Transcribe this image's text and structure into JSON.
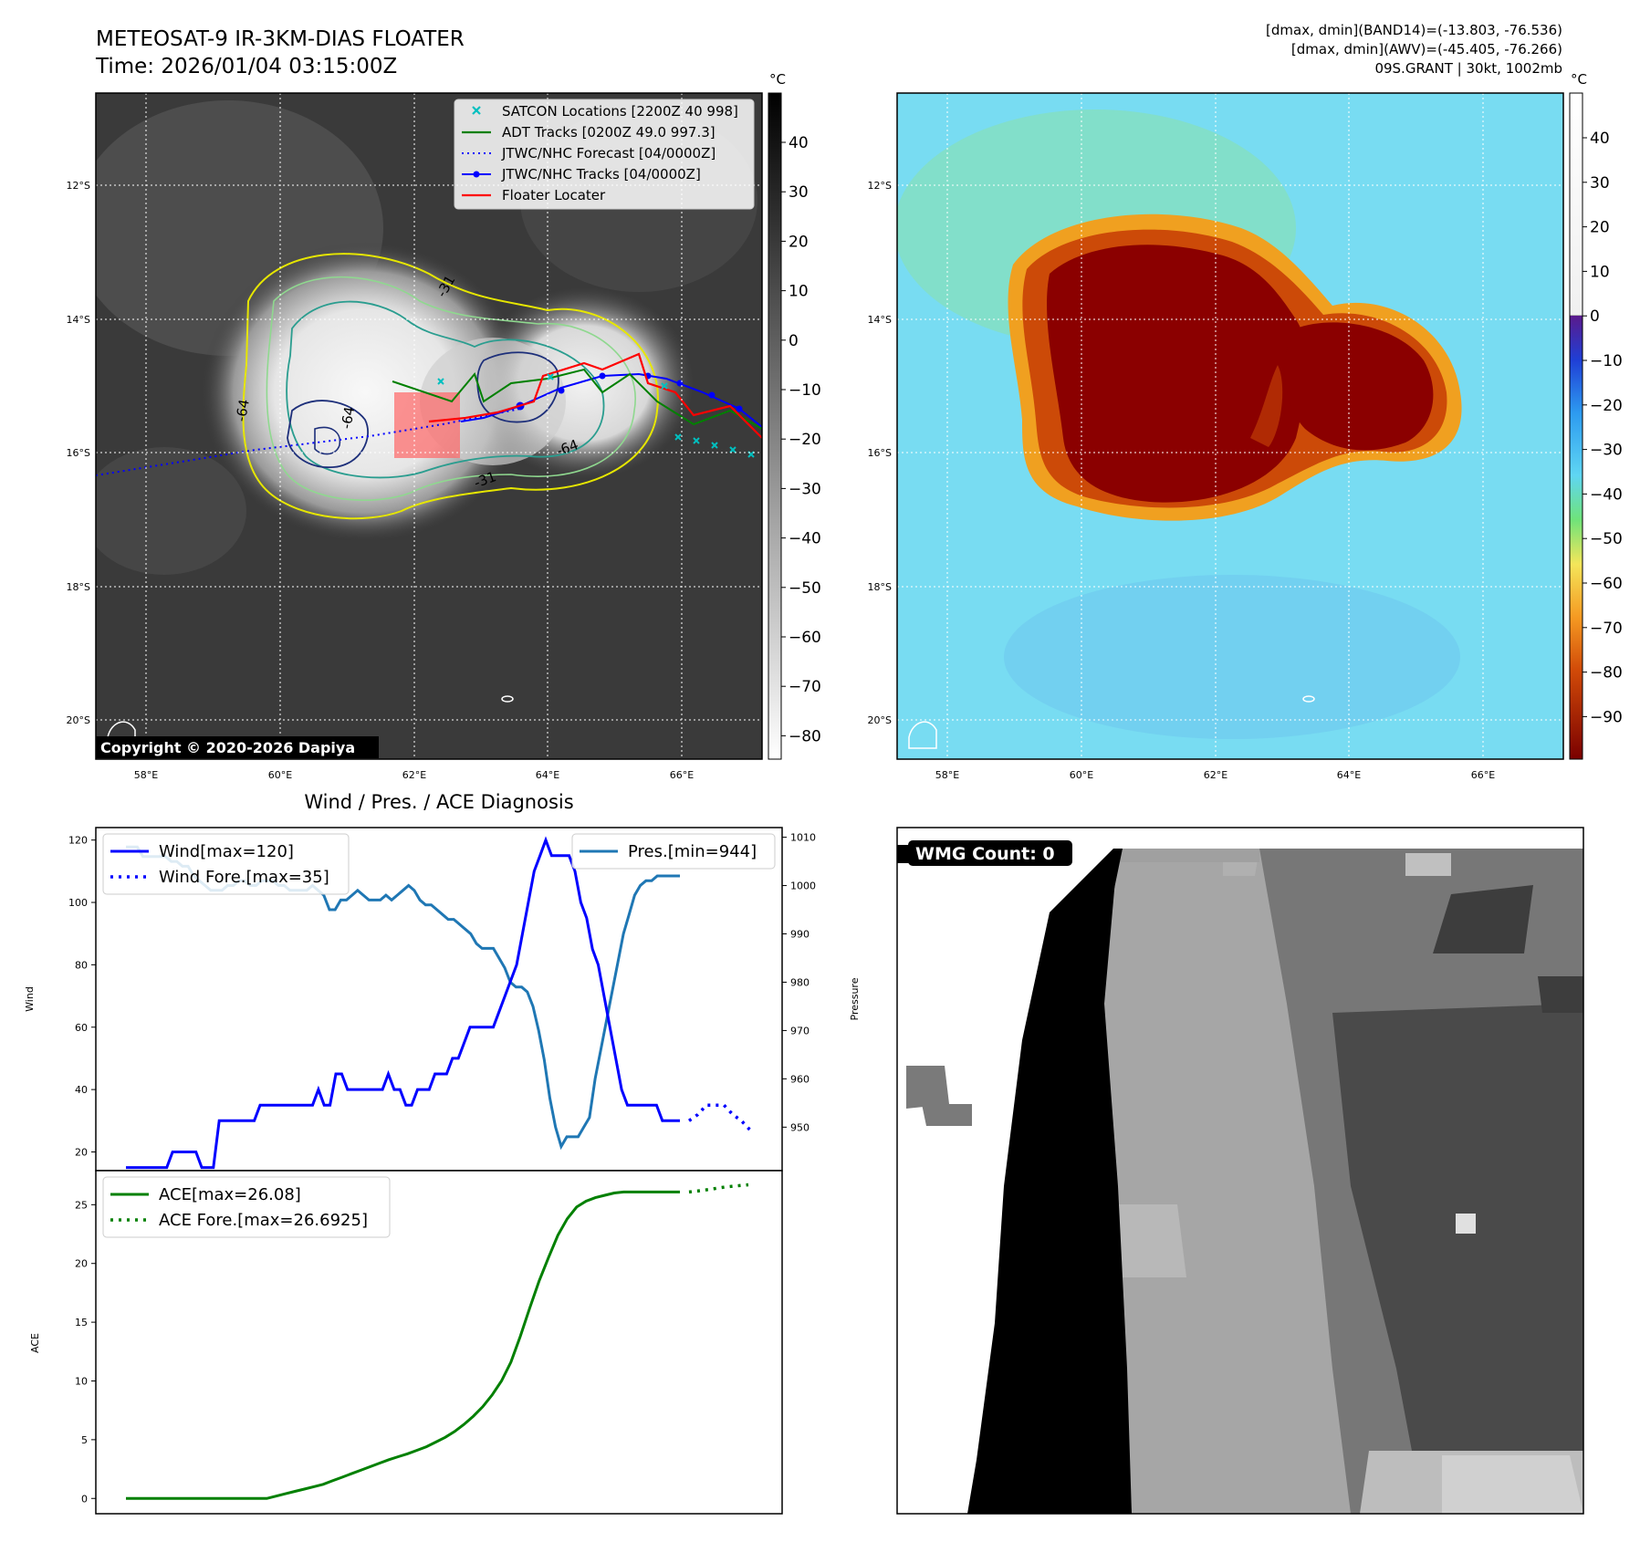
{
  "header": {
    "title_line1": "METEOSAT-9 IR-3KM-DIAS FLOATER",
    "title_line2": "Time: 2026/01/04 03:15:00Z",
    "info_line1": "[dmax, dmin](BAND14)=(-13.803, -76.536)",
    "info_line2": "[dmax, dmin](AWV)=(-45.405, -76.266)",
    "info_line3": "09S.GRANT | 30kt, 1002mb"
  },
  "map": {
    "lat_labels": [
      "12°S",
      "14°S",
      "16°S",
      "18°S",
      "20°S"
    ],
    "lon_labels": [
      "58°E",
      "60°E",
      "62°E",
      "64°E",
      "66°E"
    ],
    "contour_labels": [
      "-31",
      "-64",
      "-64",
      "-31",
      "-64"
    ],
    "copyright": "Copyright © 2020-2026 Dapiya",
    "legend": [
      {
        "label": "SATCON Locations [2200Z 40 998]",
        "color": "#00bfbf",
        "kind": "x"
      },
      {
        "label": "ADT Tracks [0200Z 49.0 997.3]",
        "color": "#008000",
        "kind": "line"
      },
      {
        "label": "JTWC/NHC Forecast [04/0000Z]",
        "color": "#0000ff",
        "kind": "dotted"
      },
      {
        "label": "JTWC/NHC Tracks [04/0000Z]",
        "color": "#0000ff",
        "kind": "dotline"
      },
      {
        "label": "Floater Locater",
        "color": "#ff0000",
        "kind": "line"
      }
    ],
    "ir_colorbar": {
      "unit": "°C",
      "ticks": [
        "40",
        "30",
        "20",
        "10",
        "0",
        "−10",
        "−20",
        "−30",
        "−40",
        "−50",
        "−60",
        "−70",
        "−80"
      ]
    },
    "awv_colorbar": {
      "unit": "°C",
      "ticks": [
        "40",
        "30",
        "20",
        "10",
        "0",
        "−10",
        "−20",
        "−30",
        "−40",
        "−50",
        "−60",
        "−70",
        "−80",
        "−90"
      ]
    }
  },
  "chart_data": [
    {
      "type": "line",
      "title": "Wind / Pres. / ACE Diagnosis",
      "ylabel": "Wind",
      "ylabel_right": "Pressure",
      "ylim": [
        14,
        124
      ],
      "ylim_right": [
        941,
        1012
      ],
      "yticks": [
        "20",
        "40",
        "60",
        "80",
        "100",
        "120"
      ],
      "yticks_right": [
        "950",
        "960",
        "970",
        "980",
        "990",
        "1000",
        "1010"
      ],
      "legend_left": [
        "Wind[max=120]",
        "Wind Fore.[max=35]"
      ],
      "legend_right": [
        "Pres.[min=944]"
      ],
      "series": [
        {
          "name": "Wind[max=120]",
          "color": "#0000ff",
          "style": "solid",
          "values": [
            15,
            15,
            15,
            15,
            15,
            15,
            15,
            15,
            20,
            20,
            20,
            20,
            20,
            15,
            15,
            15,
            30,
            30,
            30,
            30,
            30,
            30,
            30,
            35,
            35,
            35,
            35,
            35,
            35,
            35,
            35,
            35,
            35,
            40,
            35,
            35,
            45,
            45,
            40,
            40,
            40,
            40,
            40,
            40,
            40,
            45,
            40,
            40,
            35,
            35,
            40,
            40,
            40,
            45,
            45,
            45,
            50,
            50,
            55,
            60,
            60,
            60,
            60,
            60,
            65,
            70,
            75,
            80,
            90,
            100,
            110,
            115,
            120,
            115,
            115,
            115,
            115,
            110,
            100,
            95,
            85,
            80,
            70,
            60,
            50,
            40,
            35,
            35,
            35,
            35,
            35,
            35,
            30,
            30,
            30,
            30
          ]
        },
        {
          "name": "Wind Fore.[max=35]",
          "color": "#0000ff",
          "style": "dotted",
          "values": [
            30,
            32,
            35,
            35,
            35,
            32,
            30,
            27
          ]
        },
        {
          "name": "Pres.[min=944]",
          "color": "#1f77b4",
          "style": "solid",
          "values": [
            1008,
            1008,
            1008,
            1006,
            1006,
            1006,
            1006,
            1006,
            1005,
            1005,
            1004,
            1004,
            1002,
            1001,
            1000,
            999,
            999,
            999,
            1000,
            1000,
            1001,
            1001,
            1000,
            1000,
            1001,
            1001,
            1001,
            1000,
            1000,
            999,
            999,
            999,
            999,
            1000,
            999,
            998,
            995,
            995,
            997,
            997,
            998,
            999,
            998,
            997,
            997,
            997,
            998,
            997,
            998,
            999,
            1000,
            999,
            997,
            996,
            996,
            995,
            994,
            993,
            993,
            992,
            991,
            990,
            988,
            987,
            987,
            987,
            985,
            983,
            980,
            979,
            979,
            978,
            975,
            970,
            964,
            956,
            950,
            946,
            948,
            948,
            948,
            950,
            952,
            960,
            966,
            972,
            978,
            984,
            990,
            994,
            998,
            1000,
            1001,
            1001,
            1002,
            1002,
            1002,
            1002,
            1002
          ]
        }
      ]
    },
    {
      "type": "line",
      "ylabel": "ACE",
      "ylim": [
        -1.3,
        27.9
      ],
      "yticks": [
        "0",
        "5",
        "10",
        "15",
        "20",
        "25"
      ],
      "legend": [
        "ACE[max=26.08]",
        "ACE Fore.[max=26.6925]"
      ],
      "series": [
        {
          "name": "ACE[max=26.08]",
          "color": "#008000",
          "style": "solid",
          "values": [
            0,
            0,
            0,
            0,
            0,
            0,
            0,
            0,
            0,
            0,
            0,
            0,
            0,
            0,
            0,
            0,
            0.2,
            0.4,
            0.6,
            0.8,
            1.0,
            1.2,
            1.5,
            1.8,
            2.1,
            2.4,
            2.7,
            3.0,
            3.3,
            3.55,
            3.8,
            4.1,
            4.4,
            4.8,
            5.2,
            5.7,
            6.3,
            7.0,
            7.8,
            8.8,
            10.0,
            11.6,
            13.8,
            16.2,
            18.5,
            20.5,
            22.4,
            23.8,
            24.8,
            25.3,
            25.6,
            25.8,
            26.0,
            26.08,
            26.08,
            26.08,
            26.08,
            26.08,
            26.08,
            26.08
          ]
        },
        {
          "name": "ACE Fore.[max=26.6925]",
          "color": "#008000",
          "style": "dotted",
          "values": [
            26.08,
            26.2,
            26.35,
            26.5,
            26.6,
            26.6925
          ]
        }
      ]
    }
  ],
  "wmg": {
    "label": "WMG Count: 0"
  }
}
